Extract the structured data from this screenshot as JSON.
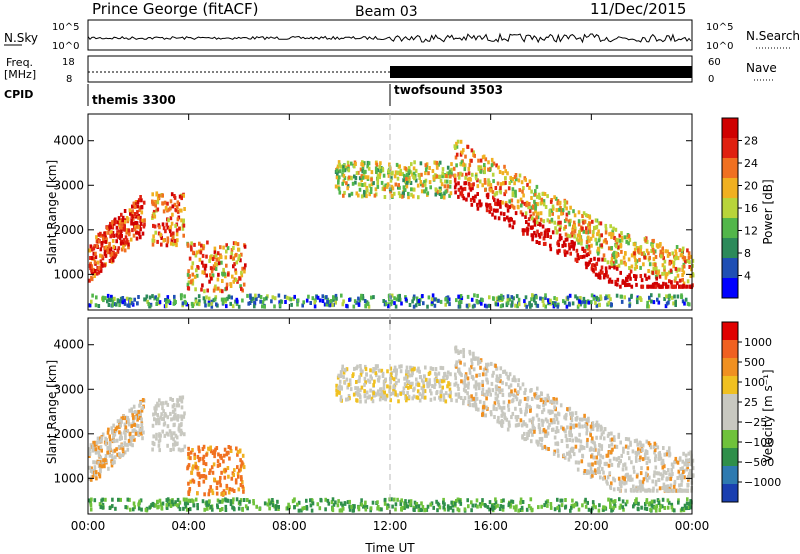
{
  "header": {
    "station": "Prince George (fitACF)",
    "beam": "Beam 03",
    "date": "11/Dec/2015"
  },
  "top_panels": {
    "nsky_label": "N.Sky",
    "nsearch_label": "N.Search",
    "freq_label_line1": "Freq.",
    "freq_label_line2": "[MHz]",
    "nave_label": "Nave",
    "cpid_label": "CPID",
    "nsky_ticks": [
      "10^5",
      "10^0"
    ],
    "nsearch_ticks": [
      "10^5",
      "10^0"
    ],
    "freq_ticks": [
      "18",
      "8"
    ],
    "nave_ticks": [
      "60",
      "0"
    ],
    "cpid_programs": [
      {
        "name": "themis 3300",
        "start_hour": 0
      },
      {
        "name": "twofsound 3503",
        "start_hour": 12
      }
    ]
  },
  "chart_data": [
    {
      "type": "heatmap",
      "ylabel": "Slant Range [km]",
      "x_ticks": [
        "00:00",
        "04:00",
        "08:00",
        "12:00",
        "16:00",
        "20:00",
        "00:00"
      ],
      "y_ticks": [
        "1000",
        "2000",
        "3000",
        "4000"
      ],
      "ylim": [
        200,
        4600
      ],
      "xlim_hours": [
        0,
        24
      ],
      "colorbar_label": "Power [dB]",
      "colorbar_ticks": [
        "4",
        "8",
        "12",
        "16",
        "20",
        "24",
        "28"
      ],
      "colors": [
        "#0000ff",
        "#1f4fb4",
        "#2c8a5a",
        "#52b64a",
        "#b8d43a",
        "#f0b020",
        "#f07020",
        "#e02010",
        "#d00000"
      ]
    },
    {
      "type": "heatmap",
      "ylabel": "Slant Range [km]",
      "xlabel": "Time UT",
      "x_ticks": [
        "00:00",
        "04:00",
        "08:00",
        "12:00",
        "16:00",
        "20:00",
        "00:00"
      ],
      "y_ticks": [
        "1000",
        "2000",
        "3000",
        "4000"
      ],
      "ylim": [
        200,
        4600
      ],
      "xlim_hours": [
        0,
        24
      ],
      "colorbar_label": "Velocity [m s⁻¹]",
      "colorbar_ticks": [
        "1000",
        "500",
        "100",
        "25",
        "−25",
        "−100",
        "−500",
        "−1000"
      ],
      "colors": [
        "#1a3fb0",
        "#2e7ab0",
        "#2f8f4a",
        "#6fc23b",
        "#c8c8c0",
        "#c8c8c0",
        "#f0c020",
        "#f09020",
        "#f06020",
        "#e00000"
      ]
    }
  ]
}
